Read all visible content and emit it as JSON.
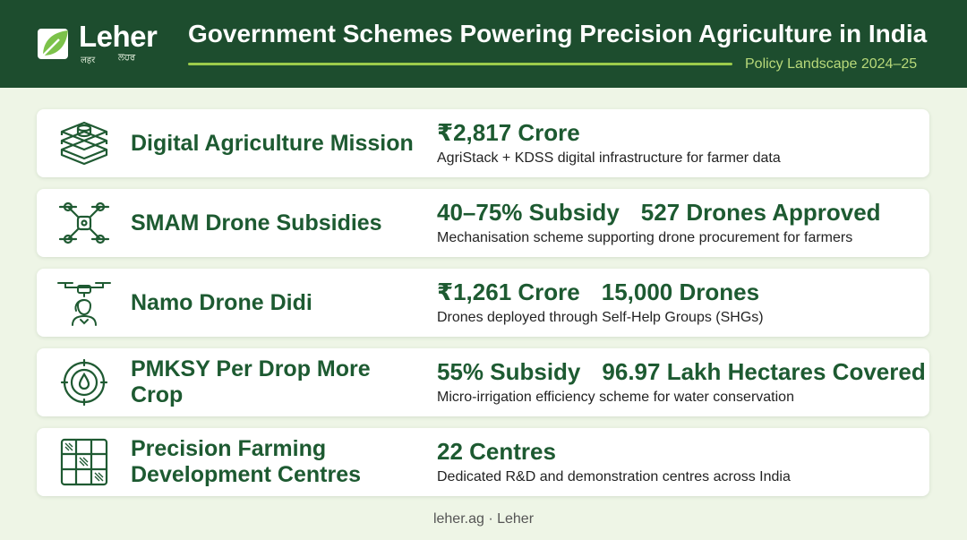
{
  "brand": {
    "name": "Leher",
    "sub_left": "लहर",
    "sub_right": "ਲਹਰ"
  },
  "header": {
    "title": "Government Schemes Powering Precision Agriculture in India",
    "subtitle": "Policy Landscape 2024–25"
  },
  "colors": {
    "header_bg": "#1d4d2e",
    "accent": "#9ccc4b",
    "text_green": "#1d5a31",
    "page_bg": "#eef5e6"
  },
  "schemes": [
    {
      "icon": "server-stack-icon",
      "name": "Digital Agriculture Mission",
      "stats": [
        "₹2,817 Crore"
      ],
      "description": "AgriStack + KDSS digital infrastructure for farmer data"
    },
    {
      "icon": "drone-icon",
      "name": "SMAM Drone Subsidies",
      "stats": [
        "40–75% Subsidy",
        "527 Drones Approved"
      ],
      "description": "Mechanisation scheme supporting drone procurement for farmers"
    },
    {
      "icon": "drone-woman-icon",
      "name": "Namo Drone Didi",
      "stats": [
        "₹1,261 Crore",
        "15,000 Drones"
      ],
      "description": "Drones deployed through Self-Help Groups (SHGs)"
    },
    {
      "icon": "water-drop-target-icon",
      "name": "PMKSY Per Drop More Crop",
      "stats": [
        "55% Subsidy",
        "96.97 Lakh Hectares Covered"
      ],
      "description": "Micro-irrigation efficiency scheme for water conservation"
    },
    {
      "icon": "field-grid-icon",
      "name": "Precision Farming Development Centres",
      "stats": [
        "22 Centres"
      ],
      "description": "Dedicated R&D and demonstration centres across India"
    }
  ],
  "footer": {
    "text": "leher.ag · Leher"
  }
}
